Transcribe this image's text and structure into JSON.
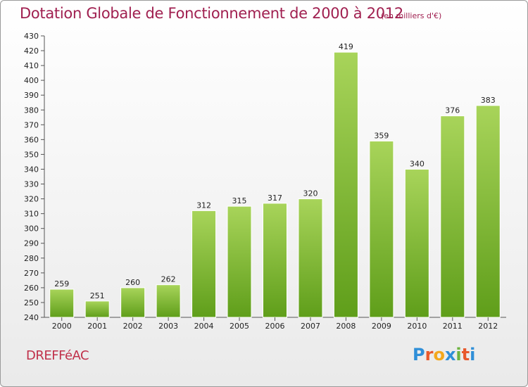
{
  "title": "Dotation Globale de Fonctionnement de 2000 à 2012",
  "subtitle": "(en milliers d'€)",
  "commune": "DREFFéAC",
  "logo": {
    "letters": [
      "P",
      "r",
      "o",
      "x",
      "i",
      "t",
      "i"
    ],
    "colors": [
      "#2f8fd8",
      "#e8592c",
      "#f4a81d",
      "#2f8fd8",
      "#6cb33f",
      "#e8592c",
      "#2f8fd8"
    ]
  },
  "colors": {
    "bar_light": "#a8d45a",
    "bar_dark": "#5f9e1a",
    "title": "#a02050",
    "commune": "#c0304a"
  },
  "chart_data": {
    "type": "bar",
    "title": "Dotation Globale de Fonctionnement de 2000 à 2012",
    "subtitle": "(en milliers d'€)",
    "categories": [
      "2000",
      "2001",
      "2002",
      "2003",
      "2004",
      "2005",
      "2006",
      "2007",
      "2008",
      "2009",
      "2010",
      "2011",
      "2012"
    ],
    "values": [
      259,
      251,
      260,
      262,
      312,
      315,
      317,
      320,
      419,
      359,
      340,
      376,
      383
    ],
    "ylim": [
      240,
      430
    ],
    "yticks": [
      240,
      250,
      260,
      270,
      280,
      290,
      300,
      310,
      320,
      330,
      340,
      350,
      360,
      370,
      380,
      390,
      400,
      410,
      420,
      430
    ],
    "xlabel": "",
    "ylabel": "",
    "grid": false
  }
}
